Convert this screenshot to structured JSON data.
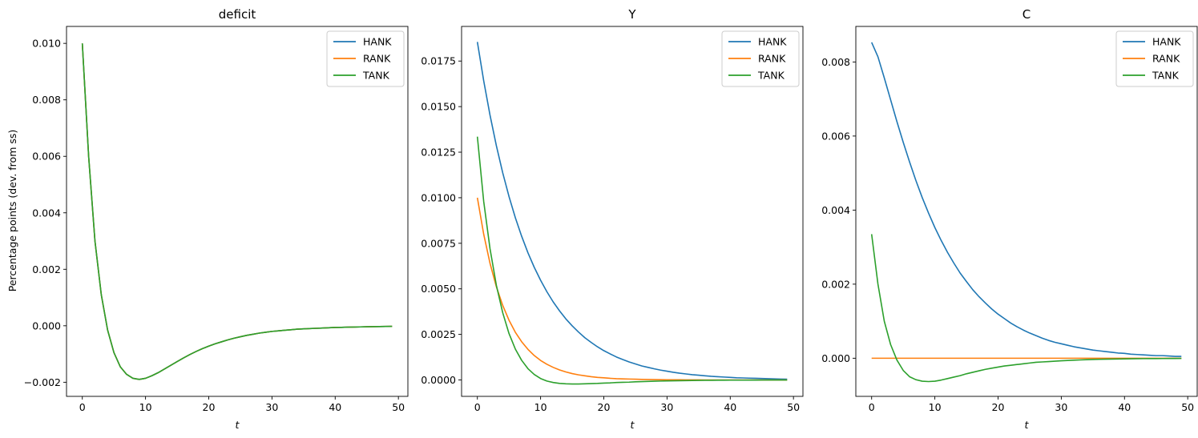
{
  "figure": {
    "shared_ylabel": "Percentage points (dev. from ss)",
    "xlabel": "t"
  },
  "colors": {
    "HANK": "#1f77b4",
    "RANK": "#ff7f0e",
    "TANK": "#2ca02c"
  },
  "chart_data": [
    {
      "type": "line",
      "title": "deficit",
      "xlabel": "t",
      "ylabel": "Percentage points (dev. from ss)",
      "xlim": [
        -2.5,
        51.5
      ],
      "ylim": [
        -0.0025,
        0.0106
      ],
      "xticks": [
        0,
        10,
        20,
        30,
        40,
        50
      ],
      "xtick_labels": [
        "0",
        "10",
        "20",
        "30",
        "40",
        "50"
      ],
      "yticks": [
        -0.002,
        0.0,
        0.002,
        0.004,
        0.006,
        0.008,
        0.01
      ],
      "ytick_labels": [
        "−0.002",
        "0.000",
        "0.002",
        "0.004",
        "0.006",
        "0.008",
        "0.010"
      ],
      "legend": "top-right",
      "grid": false,
      "x": [
        0,
        1,
        2,
        3,
        4,
        5,
        6,
        7,
        8,
        9,
        10,
        11,
        12,
        13,
        14,
        15,
        16,
        17,
        18,
        19,
        20,
        21,
        22,
        23,
        24,
        25,
        26,
        27,
        28,
        29,
        30,
        31,
        32,
        33,
        34,
        35,
        36,
        37,
        38,
        39,
        40,
        41,
        42,
        43,
        44,
        45,
        46,
        47,
        48,
        49
      ],
      "series": [
        {
          "name": "HANK",
          "values": [
            0.01,
            0.006,
            0.003,
            0.0011,
            -0.00015,
            -0.00095,
            -0.00145,
            -0.00172,
            -0.00186,
            -0.0019,
            -0.00186,
            -0.00177,
            -0.00166,
            -0.00153,
            -0.0014,
            -0.00127,
            -0.00114,
            -0.00102,
            -0.00091,
            -0.00081,
            -0.00072,
            -0.00064,
            -0.00057,
            -0.0005,
            -0.00044,
            -0.00039,
            -0.00034,
            -0.0003,
            -0.00026,
            -0.00023,
            -0.0002,
            -0.00018,
            -0.00016,
            -0.00014,
            -0.00012,
            -0.00011,
            -0.0001,
            -9e-05,
            -8e-05,
            -7e-05,
            -6e-05,
            -5.5e-05,
            -5e-05,
            -4.5e-05,
            -4e-05,
            -3.5e-05,
            -3e-05,
            -2.8e-05,
            -2.5e-05,
            -2.2e-05
          ]
        },
        {
          "name": "RANK",
          "values": [
            0.01,
            0.006,
            0.003,
            0.0011,
            -0.00015,
            -0.00095,
            -0.00145,
            -0.00172,
            -0.00186,
            -0.0019,
            -0.00186,
            -0.00177,
            -0.00166,
            -0.00153,
            -0.0014,
            -0.00127,
            -0.00114,
            -0.00102,
            -0.00091,
            -0.00081,
            -0.00072,
            -0.00064,
            -0.00057,
            -0.0005,
            -0.00044,
            -0.00039,
            -0.00034,
            -0.0003,
            -0.00026,
            -0.00023,
            -0.0002,
            -0.00018,
            -0.00016,
            -0.00014,
            -0.00012,
            -0.00011,
            -0.0001,
            -9e-05,
            -8e-05,
            -7e-05,
            -6e-05,
            -5.5e-05,
            -5e-05,
            -4.5e-05,
            -4e-05,
            -3.5e-05,
            -3e-05,
            -2.8e-05,
            -2.5e-05,
            -2.2e-05
          ]
        },
        {
          "name": "TANK",
          "values": [
            0.01,
            0.006,
            0.003,
            0.0011,
            -0.00015,
            -0.00095,
            -0.00145,
            -0.00172,
            -0.00186,
            -0.0019,
            -0.00186,
            -0.00177,
            -0.00166,
            -0.00153,
            -0.0014,
            -0.00127,
            -0.00114,
            -0.00102,
            -0.00091,
            -0.00081,
            -0.00072,
            -0.00064,
            -0.00057,
            -0.0005,
            -0.00044,
            -0.00039,
            -0.00034,
            -0.0003,
            -0.00026,
            -0.00023,
            -0.0002,
            -0.00018,
            -0.00016,
            -0.00014,
            -0.00012,
            -0.00011,
            -0.0001,
            -9e-05,
            -8e-05,
            -7e-05,
            -6e-05,
            -5.5e-05,
            -5e-05,
            -4.5e-05,
            -4e-05,
            -3.5e-05,
            -3e-05,
            -2.8e-05,
            -2.5e-05,
            -2.2e-05
          ]
        }
      ]
    },
    {
      "type": "line",
      "title": "Y",
      "xlabel": "t",
      "ylabel": "",
      "xlim": [
        -2.5,
        51.5
      ],
      "ylim": [
        -0.0009,
        0.0194
      ],
      "xticks": [
        0,
        10,
        20,
        30,
        40,
        50
      ],
      "xtick_labels": [
        "0",
        "10",
        "20",
        "30",
        "40",
        "50"
      ],
      "yticks": [
        0.0,
        0.0025,
        0.005,
        0.0075,
        0.01,
        0.0125,
        0.015,
        0.0175
      ],
      "ytick_labels": [
        "0.0000",
        "0.0025",
        "0.0050",
        "0.0075",
        "0.0100",
        "0.0125",
        "0.0150",
        "0.0175"
      ],
      "legend": "top-right",
      "grid": false,
      "x": [
        0,
        1,
        2,
        3,
        4,
        5,
        6,
        7,
        8,
        9,
        10,
        11,
        12,
        13,
        14,
        15,
        16,
        17,
        18,
        19,
        20,
        21,
        22,
        23,
        24,
        25,
        26,
        27,
        28,
        29,
        30,
        31,
        32,
        33,
        34,
        35,
        36,
        37,
        38,
        39,
        40,
        41,
        42,
        43,
        44,
        45,
        46,
        47,
        48,
        49
      ],
      "series": [
        {
          "name": "HANK",
          "values": [
            0.01855,
            0.01642,
            0.01453,
            0.01286,
            0.01138,
            0.01007,
            0.00891,
            0.00789,
            0.00698,
            0.00618,
            0.00547,
            0.00484,
            0.00428,
            0.00379,
            0.00335,
            0.00297,
            0.00263,
            0.00232,
            0.00206,
            0.00182,
            0.00161,
            0.00143,
            0.00126,
            0.00112,
            0.00099,
            0.00088,
            0.00077,
            0.00069,
            0.00061,
            0.00054,
            0.00048,
            0.00042,
            0.00037,
            0.00033,
            0.00029,
            0.00026,
            0.00023,
            0.0002,
            0.00018,
            0.00016,
            0.00014,
            0.00012,
            0.00011,
            0.0001,
            9e-05,
            8e-05,
            7e-05,
            6e-05,
            5e-05,
            4.5e-05
          ]
        },
        {
          "name": "RANK",
          "values": [
            0.01,
            0.008,
            0.0064,
            0.00512,
            0.0041,
            0.00328,
            0.00262,
            0.0021,
            0.00168,
            0.00134,
            0.00107,
            0.00086,
            0.00069,
            0.00055,
            0.00044,
            0.00035,
            0.00028,
            0.00023,
            0.00018,
            0.00014,
            0.00012,
            9e-05,
            7e-05,
            6e-05,
            5e-05,
            4e-05,
            3e-05,
            2.5e-05,
            2e-05,
            1.5e-05,
            1e-05,
            1e-05,
            1e-05,
            5e-06,
            5e-06,
            5e-06,
            0.0,
            0.0,
            0.0,
            0.0,
            0.0,
            0.0,
            0.0,
            0.0,
            0.0,
            0.0,
            0.0,
            0.0,
            0.0,
            0.0
          ]
        },
        {
          "name": "TANK",
          "values": [
            0.01335,
            0.0098,
            0.0072,
            0.0052,
            0.0037,
            0.00255,
            0.0017,
            0.00108,
            0.00062,
            0.0003,
            8e-05,
            -6e-05,
            -0.00014,
            -0.00019,
            -0.00021,
            -0.00022,
            -0.00022,
            -0.00021,
            -0.0002,
            -0.00019,
            -0.00017,
            -0.00016,
            -0.00014,
            -0.00013,
            -0.00012,
            -0.0001,
            -9e-05,
            -8e-05,
            -7e-05,
            -6e-05,
            -5e-05,
            -4.5e-05,
            -4e-05,
            -3.5e-05,
            -3e-05,
            -2.5e-05,
            -2e-05,
            -2e-05,
            -1.5e-05,
            -1.5e-05,
            -1e-05,
            -1e-05,
            -1e-05,
            -8e-06,
            -6e-06,
            -5e-06,
            -4e-06,
            -3e-06,
            -2e-06,
            -2e-06
          ]
        }
      ]
    },
    {
      "type": "line",
      "title": "C",
      "xlabel": "t",
      "ylabel": "",
      "xlim": [
        -2.5,
        51.5
      ],
      "ylim": [
        -0.00103,
        0.00896
      ],
      "xticks": [
        0,
        10,
        20,
        30,
        40,
        50
      ],
      "xtick_labels": [
        "0",
        "10",
        "20",
        "30",
        "40",
        "50"
      ],
      "yticks": [
        0.0,
        0.002,
        0.004,
        0.006,
        0.008
      ],
      "ytick_labels": [
        "0.000",
        "0.002",
        "0.004",
        "0.006",
        "0.008"
      ],
      "legend": "top-right",
      "grid": false,
      "x": [
        0,
        1,
        2,
        3,
        4,
        5,
        6,
        7,
        8,
        9,
        10,
        11,
        12,
        13,
        14,
        15,
        16,
        17,
        18,
        19,
        20,
        21,
        22,
        23,
        24,
        25,
        26,
        27,
        28,
        29,
        30,
        31,
        32,
        33,
        34,
        35,
        36,
        37,
        38,
        39,
        40,
        41,
        42,
        43,
        44,
        45,
        46,
        47,
        48,
        49
      ],
      "series": [
        {
          "name": "HANK",
          "values": [
            0.00853,
            0.00814,
            0.00757,
            0.00698,
            0.00639,
            0.00583,
            0.0053,
            0.0048,
            0.00434,
            0.00392,
            0.00353,
            0.00318,
            0.00286,
            0.00257,
            0.0023,
            0.00207,
            0.00185,
            0.00166,
            0.00149,
            0.00133,
            0.00119,
            0.00107,
            0.00095,
            0.00085,
            0.00076,
            0.00068,
            0.00061,
            0.00054,
            0.00048,
            0.00043,
            0.00039,
            0.00035,
            0.00031,
            0.00028,
            0.00025,
            0.00022,
            0.0002,
            0.00018,
            0.00016,
            0.00014,
            0.00013,
            0.00011,
            0.0001,
            9e-05,
            8e-05,
            7e-05,
            7e-05,
            6e-05,
            5e-05,
            5e-05
          ]
        },
        {
          "name": "RANK",
          "values": [
            0.0,
            0.0,
            0.0,
            0.0,
            0.0,
            0.0,
            0.0,
            0.0,
            0.0,
            0.0,
            0.0,
            0.0,
            0.0,
            0.0,
            0.0,
            0.0,
            0.0,
            0.0,
            0.0,
            0.0,
            0.0,
            0.0,
            0.0,
            0.0,
            0.0,
            0.0,
            0.0,
            0.0,
            0.0,
            0.0,
            0.0,
            0.0,
            0.0,
            0.0,
            0.0,
            0.0,
            0.0,
            0.0,
            0.0,
            0.0,
            0.0,
            0.0,
            0.0,
            0.0,
            0.0,
            0.0,
            0.0,
            0.0,
            0.0,
            0.0
          ]
        },
        {
          "name": "TANK",
          "values": [
            0.00335,
            0.002,
            0.001,
            0.00037,
            -5e-05,
            -0.00033,
            -0.0005,
            -0.00058,
            -0.00062,
            -0.00063,
            -0.00062,
            -0.00059,
            -0.00055,
            -0.00051,
            -0.00047,
            -0.00042,
            -0.00038,
            -0.00034,
            -0.0003,
            -0.00027,
            -0.00024,
            -0.00021,
            -0.00019,
            -0.00017,
            -0.00015,
            -0.00013,
            -0.00011,
            -0.0001,
            -9e-05,
            -8e-05,
            -7e-05,
            -6e-05,
            -5.2e-05,
            -4.6e-05,
            -4e-05,
            -3.5e-05,
            -3e-05,
            -2.6e-05,
            -2.3e-05,
            -2e-05,
            -1.8e-05,
            -1.5e-05,
            -1.3e-05,
            -1.1e-05,
            -1e-05,
            -9e-06,
            -8e-06,
            -7e-06,
            -6e-06,
            -5e-06
          ]
        }
      ]
    }
  ]
}
